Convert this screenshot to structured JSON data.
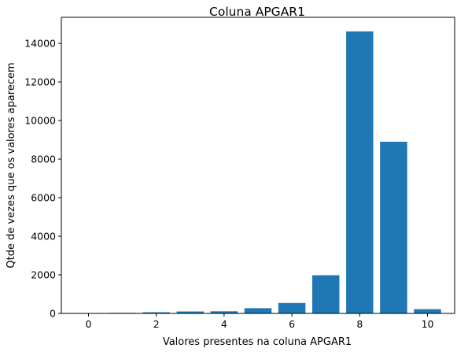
{
  "chart_data": {
    "type": "bar",
    "title": "Coluna APGAR1",
    "xlabel": "Valores presentes na coluna APGAR1",
    "ylabel": "Qtde de vezes que os valores aparecem",
    "categories": [
      0,
      1,
      2,
      3,
      4,
      5,
      6,
      7,
      8,
      9,
      10
    ],
    "values": [
      20,
      30,
      60,
      100,
      110,
      270,
      540,
      1980,
      14620,
      8900,
      220
    ],
    "xticks": [
      0,
      2,
      4,
      6,
      8,
      10
    ],
    "yticks": [
      0,
      2000,
      4000,
      6000,
      8000,
      10000,
      12000,
      14000
    ],
    "xlim": [
      -0.8,
      10.8
    ],
    "ylim": [
      0,
      15350
    ],
    "grid": false,
    "bar_color": "#1f77b4"
  }
}
